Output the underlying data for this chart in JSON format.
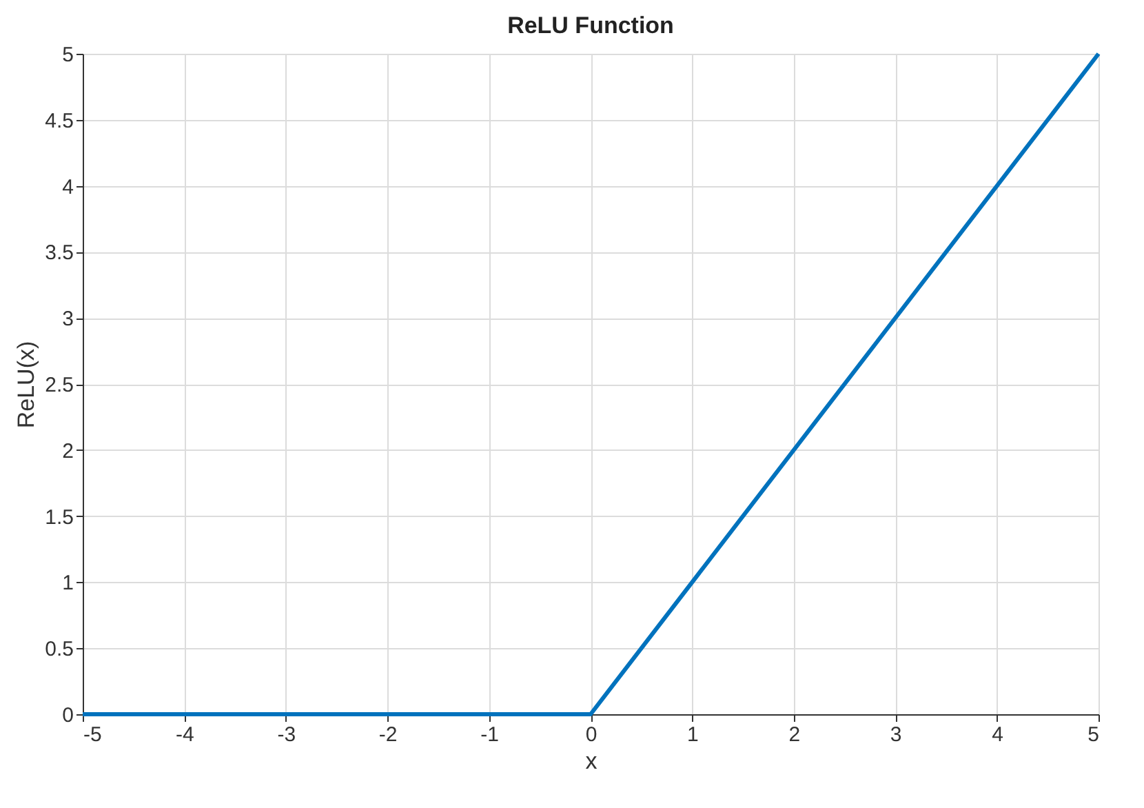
{
  "chart_data": {
    "type": "line",
    "title": "ReLU Function",
    "xlabel": "x",
    "ylabel": "ReLU(x)",
    "x": [
      -5,
      0,
      5
    ],
    "series": [
      {
        "color": "#0072bd",
        "values": [
          0,
          0,
          5
        ]
      }
    ],
    "xlim": [
      -5,
      5
    ],
    "ylim": [
      0,
      5
    ],
    "xticks": [
      -5,
      -4,
      -3,
      -2,
      -1,
      0,
      1,
      2,
      3,
      4,
      5
    ],
    "yticks": [
      0,
      0.5,
      1,
      1.5,
      2,
      2.5,
      3,
      3.5,
      4,
      4.5,
      5
    ],
    "grid": true,
    "marker": "none",
    "line_style": "solid"
  }
}
